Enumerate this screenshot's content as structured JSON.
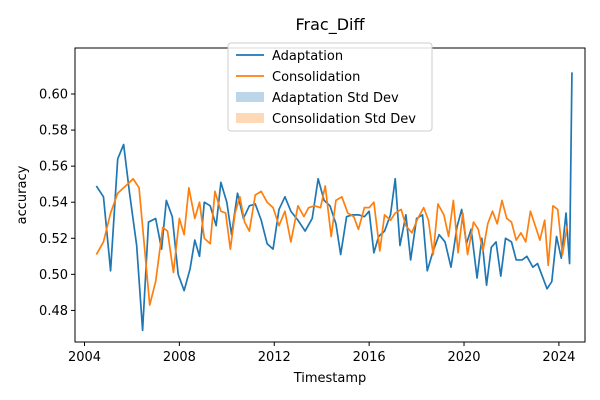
{
  "chart_data": {
    "type": "line",
    "title": "Frac_Diff",
    "xlabel": "Timestamp",
    "ylabel": "accuracy",
    "xlim": [
      2003.6,
      2025.1
    ],
    "ylim": [
      0.4625,
      0.6255
    ],
    "x_ticks": [
      2004,
      2008,
      2012,
      2016,
      2020,
      2024
    ],
    "y_ticks": [
      0.48,
      0.5,
      0.52,
      0.54,
      0.56,
      0.58,
      0.6
    ],
    "y_tick_labels": [
      "0.48",
      "0.50",
      "0.52",
      "0.54",
      "0.56",
      "0.58",
      "0.60"
    ],
    "grid": false,
    "legend_position": "top-center",
    "legend": [
      {
        "label": "Adaptation",
        "kind": "line",
        "color": "#1f77b4"
      },
      {
        "label": "Consolidation",
        "kind": "line",
        "color": "#ff7f0e"
      },
      {
        "label": "Adaptation Std Dev",
        "kind": "patch",
        "color": "#1f77b4"
      },
      {
        "label": "Consolidation Std Dev",
        "kind": "patch",
        "color": "#ff7f0e"
      }
    ],
    "series": [
      {
        "name": "Adaptation",
        "color": "#1f77b4",
        "points": [
          [
            2004.5,
            0.549
          ],
          [
            2004.8,
            0.543
          ],
          [
            2005.1,
            0.502
          ],
          [
            2005.4,
            0.564
          ],
          [
            2005.65,
            0.572
          ],
          [
            2005.9,
            0.545
          ],
          [
            2006.2,
            0.516
          ],
          [
            2006.45,
            0.469
          ],
          [
            2006.7,
            0.529
          ],
          [
            2007.0,
            0.531
          ],
          [
            2007.25,
            0.514
          ],
          [
            2007.45,
            0.541
          ],
          [
            2007.7,
            0.532
          ],
          [
            2007.95,
            0.5
          ],
          [
            2008.2,
            0.491
          ],
          [
            2008.45,
            0.503
          ],
          [
            2008.65,
            0.519
          ],
          [
            2008.85,
            0.51
          ],
          [
            2009.05,
            0.54
          ],
          [
            2009.3,
            0.538
          ],
          [
            2009.55,
            0.527
          ],
          [
            2009.75,
            0.551
          ],
          [
            2010.0,
            0.54
          ],
          [
            2010.2,
            0.522
          ],
          [
            2010.45,
            0.545
          ],
          [
            2010.7,
            0.531
          ],
          [
            2010.95,
            0.538
          ],
          [
            2011.2,
            0.539
          ],
          [
            2011.45,
            0.53
          ],
          [
            2011.7,
            0.517
          ],
          [
            2011.95,
            0.514
          ],
          [
            2012.2,
            0.536
          ],
          [
            2012.45,
            0.543
          ],
          [
            2012.7,
            0.535
          ],
          [
            2013.0,
            0.53
          ],
          [
            2013.3,
            0.524
          ],
          [
            2013.6,
            0.531
          ],
          [
            2013.85,
            0.553
          ],
          [
            2014.1,
            0.541
          ],
          [
            2014.35,
            0.538
          ],
          [
            2014.6,
            0.528
          ],
          [
            2014.8,
            0.511
          ],
          [
            2015.05,
            0.532
          ],
          [
            2015.3,
            0.533
          ],
          [
            2015.55,
            0.533
          ],
          [
            2015.8,
            0.532
          ],
          [
            2016.0,
            0.535
          ],
          [
            2016.2,
            0.512
          ],
          [
            2016.4,
            0.521
          ],
          [
            2016.65,
            0.524
          ],
          [
            2016.9,
            0.533
          ],
          [
            2017.1,
            0.553
          ],
          [
            2017.3,
            0.516
          ],
          [
            2017.55,
            0.533
          ],
          [
            2017.75,
            0.508
          ],
          [
            2018.0,
            0.531
          ],
          [
            2018.25,
            0.533
          ],
          [
            2018.45,
            0.502
          ],
          [
            2018.7,
            0.513
          ],
          [
            2018.95,
            0.522
          ],
          [
            2019.2,
            0.518
          ],
          [
            2019.45,
            0.504
          ],
          [
            2019.7,
            0.526
          ],
          [
            2019.9,
            0.536
          ],
          [
            2020.1,
            0.517
          ],
          [
            2020.3,
            0.525
          ],
          [
            2020.55,
            0.498
          ],
          [
            2020.75,
            0.52
          ],
          [
            2020.95,
            0.494
          ],
          [
            2021.15,
            0.515
          ],
          [
            2021.35,
            0.518
          ],
          [
            2021.55,
            0.499
          ],
          [
            2021.75,
            0.52
          ],
          [
            2022.0,
            0.518
          ],
          [
            2022.2,
            0.508
          ],
          [
            2022.45,
            0.508
          ],
          [
            2022.65,
            0.51
          ],
          [
            2022.9,
            0.504
          ],
          [
            2023.1,
            0.506
          ],
          [
            2023.3,
            0.499
          ],
          [
            2023.5,
            0.492
          ],
          [
            2023.7,
            0.496
          ],
          [
            2023.9,
            0.521
          ],
          [
            2024.1,
            0.509
          ],
          [
            2024.3,
            0.534
          ],
          [
            2024.45,
            0.506
          ],
          [
            2024.55,
            0.612
          ]
        ]
      },
      {
        "name": "Consolidation",
        "color": "#ff7f0e",
        "points": [
          [
            2004.5,
            0.511
          ],
          [
            2004.8,
            0.518
          ],
          [
            2005.1,
            0.534
          ],
          [
            2005.4,
            0.545
          ],
          [
            2005.65,
            0.548
          ],
          [
            2005.9,
            0.551
          ],
          [
            2006.05,
            0.553
          ],
          [
            2006.3,
            0.548
          ],
          [
            2006.55,
            0.512
          ],
          [
            2006.75,
            0.483
          ],
          [
            2007.0,
            0.496
          ],
          [
            2007.3,
            0.526
          ],
          [
            2007.5,
            0.524
          ],
          [
            2007.75,
            0.501
          ],
          [
            2008.0,
            0.531
          ],
          [
            2008.2,
            0.522
          ],
          [
            2008.4,
            0.548
          ],
          [
            2008.65,
            0.531
          ],
          [
            2008.85,
            0.54
          ],
          [
            2009.05,
            0.52
          ],
          [
            2009.3,
            0.517
          ],
          [
            2009.5,
            0.546
          ],
          [
            2009.75,
            0.535
          ],
          [
            2009.95,
            0.534
          ],
          [
            2010.15,
            0.514
          ],
          [
            2010.35,
            0.534
          ],
          [
            2010.55,
            0.543
          ],
          [
            2010.75,
            0.529
          ],
          [
            2010.95,
            0.524
          ],
          [
            2011.2,
            0.544
          ],
          [
            2011.45,
            0.546
          ],
          [
            2011.7,
            0.54
          ],
          [
            2011.95,
            0.537
          ],
          [
            2012.2,
            0.527
          ],
          [
            2012.45,
            0.535
          ],
          [
            2012.7,
            0.518
          ],
          [
            2013.0,
            0.538
          ],
          [
            2013.25,
            0.532
          ],
          [
            2013.45,
            0.537
          ],
          [
            2013.7,
            0.538
          ],
          [
            2013.95,
            0.537
          ],
          [
            2014.15,
            0.549
          ],
          [
            2014.4,
            0.521
          ],
          [
            2014.6,
            0.541
          ],
          [
            2014.85,
            0.543
          ],
          [
            2015.1,
            0.534
          ],
          [
            2015.35,
            0.532
          ],
          [
            2015.55,
            0.525
          ],
          [
            2015.8,
            0.537
          ],
          [
            2016.0,
            0.537
          ],
          [
            2016.2,
            0.54
          ],
          [
            2016.45,
            0.513
          ],
          [
            2016.65,
            0.533
          ],
          [
            2016.9,
            0.53
          ],
          [
            2017.1,
            0.534
          ],
          [
            2017.35,
            0.536
          ],
          [
            2017.55,
            0.527
          ],
          [
            2017.8,
            0.523
          ],
          [
            2018.05,
            0.531
          ],
          [
            2018.3,
            0.537
          ],
          [
            2018.5,
            0.53
          ],
          [
            2018.7,
            0.511
          ],
          [
            2018.9,
            0.539
          ],
          [
            2019.15,
            0.533
          ],
          [
            2019.35,
            0.521
          ],
          [
            2019.55,
            0.541
          ],
          [
            2019.75,
            0.512
          ],
          [
            2019.95,
            0.534
          ],
          [
            2020.15,
            0.511
          ],
          [
            2020.4,
            0.529
          ],
          [
            2020.6,
            0.525
          ],
          [
            2020.8,
            0.513
          ],
          [
            2021.0,
            0.528
          ],
          [
            2021.2,
            0.535
          ],
          [
            2021.4,
            0.528
          ],
          [
            2021.6,
            0.541
          ],
          [
            2021.8,
            0.531
          ],
          [
            2022.0,
            0.529
          ],
          [
            2022.2,
            0.519
          ],
          [
            2022.4,
            0.523
          ],
          [
            2022.6,
            0.518
          ],
          [
            2022.8,
            0.535
          ],
          [
            2023.0,
            0.527
          ],
          [
            2023.2,
            0.519
          ],
          [
            2023.4,
            0.53
          ],
          [
            2023.55,
            0.505
          ],
          [
            2023.75,
            0.538
          ],
          [
            2023.95,
            0.536
          ],
          [
            2024.15,
            0.511
          ],
          [
            2024.35,
            0.527
          ]
        ]
      }
    ]
  }
}
